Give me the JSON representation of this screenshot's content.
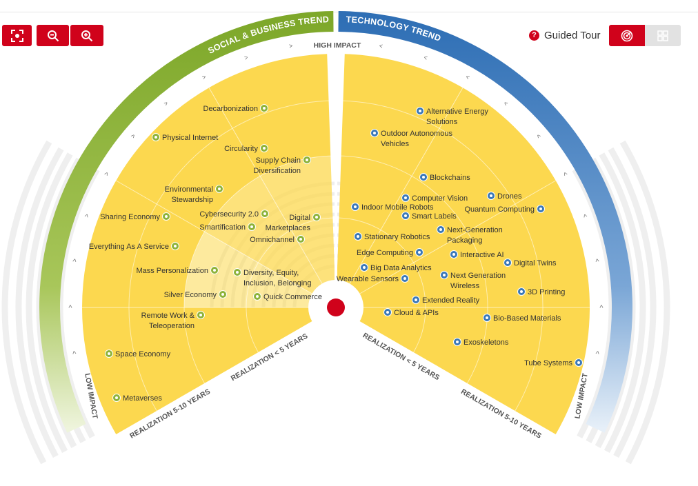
{
  "toolbar": {
    "fit": "focus-frame-icon",
    "zoom_out": "zoom-out-icon",
    "zoom_in": "zoom-in-icon"
  },
  "guided_tour": {
    "icon": "question-icon",
    "label": "Guided Tour"
  },
  "views": {
    "radar": "radar-icon",
    "grid": "grid-icon"
  },
  "colors": {
    "social": "#8db33a",
    "technology": "#3a78b8",
    "sector_fill": "#fcd84f",
    "accent": "#d0021b"
  },
  "arcs": {
    "social": "SOCIAL & BUSINESS TRENDS",
    "technology": "TECHNOLOGY TRENDS"
  },
  "axis": {
    "high": "HIGH IMPACT",
    "low_left": "LOW IMPACT",
    "low_right": "LOW IMPACT"
  },
  "realization": {
    "left_outer": "REALIZATION 5-10 YEARS",
    "left_inner": "REALIZATION < 5 YEARS",
    "right_inner": "REALIZATION < 5 YEARS",
    "right_outer": "REALIZATION 5-10 YEARS"
  },
  "trends": [
    {
      "lines": [
        "Decarbonization"
      ],
      "category": "social"
    },
    {
      "lines": [
        "Physical Internet"
      ],
      "category": "social"
    },
    {
      "lines": [
        "Circularity"
      ],
      "category": "social"
    },
    {
      "lines": [
        "Supply Chain",
        "Diversification"
      ],
      "category": "social"
    },
    {
      "lines": [
        "Environmental",
        "Stewardship"
      ],
      "category": "social"
    },
    {
      "lines": [
        "Sharing Economy"
      ],
      "category": "social"
    },
    {
      "lines": [
        "Cybersecurity 2.0"
      ],
      "category": "social"
    },
    {
      "lines": [
        "Digital",
        "Marketplaces"
      ],
      "category": "social"
    },
    {
      "lines": [
        "Smartification"
      ],
      "category": "social"
    },
    {
      "lines": [
        "Omnichannel"
      ],
      "category": "social"
    },
    {
      "lines": [
        "Everything As A Service"
      ],
      "category": "social"
    },
    {
      "lines": [
        "Mass Personalization"
      ],
      "category": "social"
    },
    {
      "lines": [
        "Diversity, Equity,",
        "Inclusion, Belonging"
      ],
      "category": "social"
    },
    {
      "lines": [
        "Silver Economy"
      ],
      "category": "social"
    },
    {
      "lines": [
        "Quick Commerce"
      ],
      "category": "social"
    },
    {
      "lines": [
        "Remote Work &",
        "Teleoperation"
      ],
      "category": "social"
    },
    {
      "lines": [
        "Space Economy"
      ],
      "category": "social"
    },
    {
      "lines": [
        "Metaverses"
      ],
      "category": "social"
    },
    {
      "lines": [
        "Alternative Energy",
        "Solutions"
      ],
      "category": "technology"
    },
    {
      "lines": [
        "Outdoor Autonomous",
        "Vehicles"
      ],
      "category": "technology"
    },
    {
      "lines": [
        "Blockchains"
      ],
      "category": "technology"
    },
    {
      "lines": [
        "Computer Vision"
      ],
      "category": "technology"
    },
    {
      "lines": [
        "Drones"
      ],
      "category": "technology"
    },
    {
      "lines": [
        "Indoor Mobile Robots"
      ],
      "category": "technology"
    },
    {
      "lines": [
        "Smart Labels"
      ],
      "category": "technology"
    },
    {
      "lines": [
        "Quantum Computing"
      ],
      "category": "technology"
    },
    {
      "lines": [
        "Next-Generation",
        "Packaging"
      ],
      "category": "technology"
    },
    {
      "lines": [
        "Stationary Robotics"
      ],
      "category": "technology"
    },
    {
      "lines": [
        "Edge Computing"
      ],
      "category": "technology"
    },
    {
      "lines": [
        "Interactive AI"
      ],
      "category": "technology"
    },
    {
      "lines": [
        "Digital Twins"
      ],
      "category": "technology"
    },
    {
      "lines": [
        "Big Data Analytics"
      ],
      "category": "technology"
    },
    {
      "lines": [
        "Next Generation",
        "Wireless"
      ],
      "category": "technology"
    },
    {
      "lines": [
        "Wearable Sensors"
      ],
      "category": "technology"
    },
    {
      "lines": [
        "3D Printing"
      ],
      "category": "technology"
    },
    {
      "lines": [
        "Extended Reality"
      ],
      "category": "technology"
    },
    {
      "lines": [
        "Cloud & APIs"
      ],
      "category": "technology"
    },
    {
      "lines": [
        "Bio-Based Materials"
      ],
      "category": "technology"
    },
    {
      "lines": [
        "Exoskeletons"
      ],
      "category": "technology"
    },
    {
      "lines": [
        "Tube Systems"
      ],
      "category": "technology"
    }
  ]
}
